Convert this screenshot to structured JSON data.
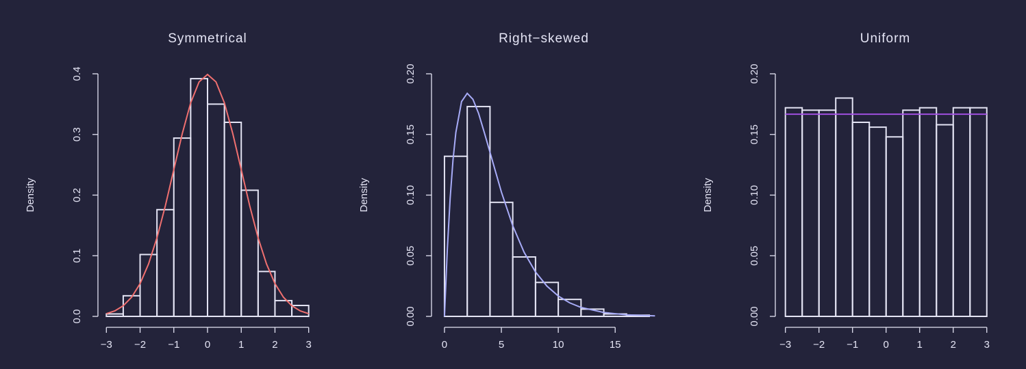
{
  "chart_data": [
    {
      "type": "histogram",
      "title": "Symmetrical",
      "ylabel": "Density",
      "bins": [
        -3,
        -2.5,
        -2,
        -1.5,
        -1,
        -0.5,
        0,
        0.5,
        1,
        1.5,
        2,
        2.5,
        3
      ],
      "values": [
        0.004,
        0.034,
        0.102,
        0.176,
        0.294,
        0.392,
        0.35,
        0.32,
        0.208,
        0.074,
        0.026,
        0.018
      ],
      "color": "#e4e4f4",
      "curve": {
        "color": "#f07070",
        "x": [
          -3,
          -2.75,
          -2.5,
          -2.25,
          -2,
          -1.75,
          -1.5,
          -1.25,
          -1,
          -0.75,
          -0.5,
          -0.25,
          0,
          0.25,
          0.5,
          0.75,
          1,
          1.25,
          1.5,
          1.75,
          2,
          2.25,
          2.5,
          2.75,
          3
        ],
        "values": [
          0.0044,
          0.0091,
          0.0175,
          0.0317,
          0.054,
          0.0863,
          0.1295,
          0.1826,
          0.242,
          0.3011,
          0.3521,
          0.3867,
          0.3989,
          0.3867,
          0.3521,
          0.3011,
          0.242,
          0.1826,
          0.1295,
          0.0863,
          0.054,
          0.0317,
          0.0175,
          0.0091,
          0.0044
        ]
      },
      "xlim": [
        -3.25,
        3.25
      ],
      "ylim": [
        0,
        0.4
      ],
      "xticks": [
        {
          "value": -3,
          "label": "−3"
        },
        {
          "value": -2,
          "label": "−2"
        },
        {
          "value": -1,
          "label": "−1"
        },
        0,
        1,
        2,
        3
      ],
      "yticks": [
        {
          "value": 0,
          "label": "0.0"
        },
        0.1,
        0.2,
        0.3,
        0.4
      ]
    },
    {
      "type": "histogram",
      "title": "Right−skewed",
      "ylabel": "Density",
      "bins": [
        0,
        2,
        4,
        6,
        8,
        10,
        12,
        14,
        16,
        18
      ],
      "values": [
        0.132,
        0.173,
        0.094,
        0.049,
        0.028,
        0.014,
        0.006,
        0.002,
        0.001
      ],
      "color": "#e4e4f4",
      "curve": {
        "color": "#a8acf8",
        "x": [
          0,
          0.25,
          0.5,
          0.75,
          1,
          1.5,
          2,
          2.5,
          3,
          3.5,
          4,
          5,
          6,
          7,
          8,
          9,
          10,
          11,
          12,
          14,
          16,
          18.5
        ],
        "values": [
          0,
          0.0551,
          0.0974,
          0.1289,
          0.1516,
          0.1771,
          0.1839,
          0.179,
          0.1673,
          0.1516,
          0.1353,
          0.1026,
          0.0747,
          0.0528,
          0.0366,
          0.025,
          0.0168,
          0.0112,
          0.0074,
          0.0032,
          0.0013,
          0.0004
        ]
      },
      "xlim": [
        -1.14,
        18.6
      ],
      "ylim": [
        0,
        0.2
      ],
      "xticks": [
        0,
        5,
        10,
        15
      ],
      "yticks": [
        {
          "value": 0,
          "label": "0.00"
        },
        {
          "value": 0.05,
          "label": "0.05"
        },
        {
          "value": 0.1,
          "label": "0.10"
        },
        {
          "value": 0.15,
          "label": "0.15"
        },
        {
          "value": 0.2,
          "label": "0.20"
        }
      ]
    },
    {
      "type": "histogram",
      "title": "Uniform",
      "ylabel": "Density",
      "bins": [
        -3,
        -2.5,
        -2,
        -1.5,
        -1,
        -0.5,
        0,
        0.5,
        1,
        1.5,
        2,
        2.5,
        3
      ],
      "values": [
        0.172,
        0.17,
        0.17,
        0.18,
        0.16,
        0.156,
        0.148,
        0.17,
        0.172,
        0.158,
        0.172,
        0.172
      ],
      "color": "#e4e4f4",
      "curve": {
        "color": "#a050e0",
        "x": [
          -3,
          3
        ],
        "values": [
          0.1667,
          0.1667
        ]
      },
      "xlim": [
        -3.3,
        3.25
      ],
      "ylim": [
        0,
        0.2
      ],
      "xticks": [
        {
          "value": -3,
          "label": "−3"
        },
        {
          "value": -2,
          "label": "−2"
        },
        {
          "value": -1,
          "label": "−1"
        },
        0,
        1,
        2,
        3
      ],
      "yticks": [
        {
          "value": 0,
          "label": "0.00"
        },
        {
          "value": 0.05,
          "label": "0.05"
        },
        {
          "value": 0.1,
          "label": "0.10"
        },
        {
          "value": 0.15,
          "label": "0.15"
        },
        {
          "value": 0.2,
          "label": "0.20"
        }
      ]
    }
  ]
}
